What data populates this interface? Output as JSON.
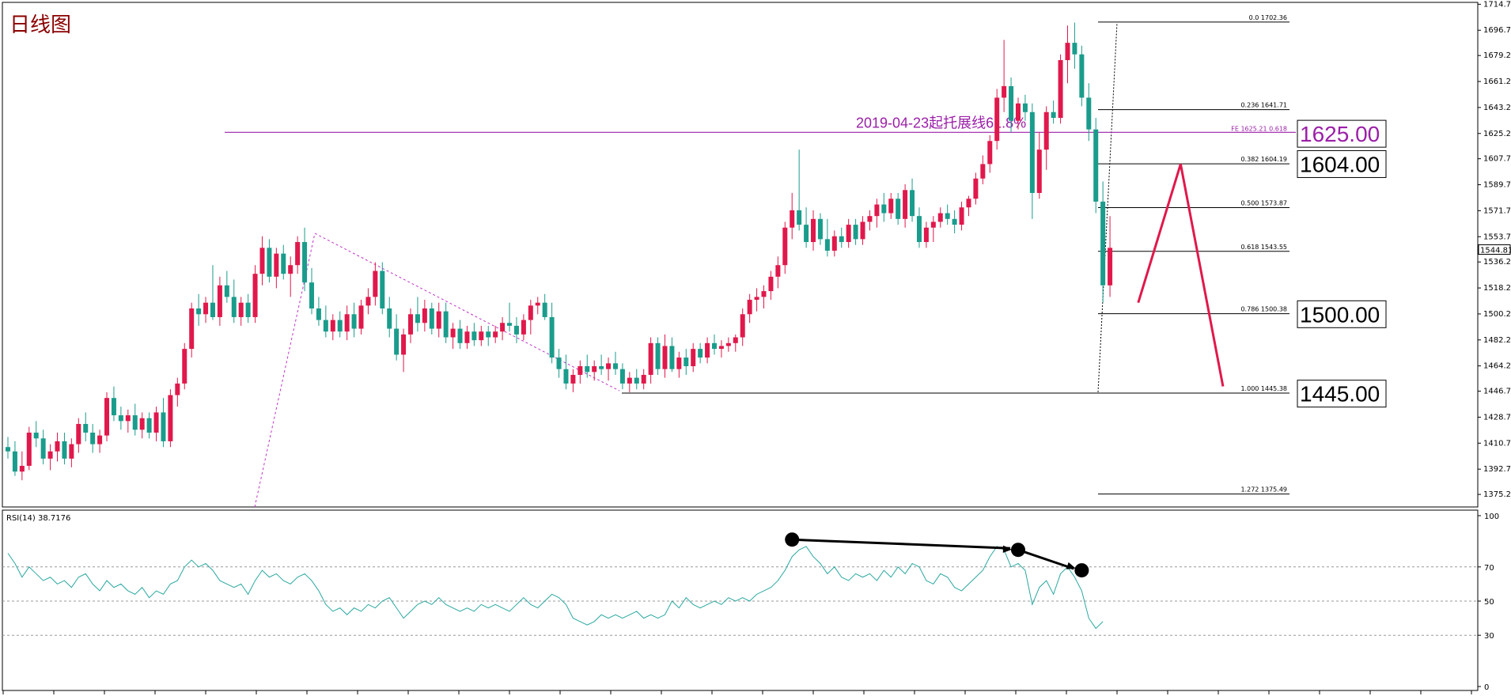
{
  "chart_data": {
    "type": "candlestick",
    "title": "日线图",
    "price_axis": {
      "ylim": [
        1366.5,
        1716.0
      ],
      "ticks": [
        "1714.70",
        "1696.70",
        "1679.20",
        "1661.20",
        "1643.20",
        "1625.20",
        "1607.70",
        "1589.70",
        "1571.70",
        "1553.70",
        "1536.20",
        "1518.20",
        "1500.20",
        "1482.20",
        "1464.20",
        "1446.70",
        "1428.70",
        "1410.70",
        "1392.70",
        "1375.20"
      ],
      "current_price_label": "1544.81",
      "current_price": 1544.81
    },
    "colors": {
      "bull": "#e0184b",
      "bear": "#1a9c8c",
      "fe_line": "#9b1fa8",
      "projection": "#e0184b",
      "rsi_line": "#2aa8a0",
      "fib_line": "#000000"
    },
    "candles": [
      {
        "o": 1408,
        "h": 1415,
        "l": 1400,
        "c": 1405
      },
      {
        "o": 1405,
        "h": 1412,
        "l": 1388,
        "c": 1391
      },
      {
        "o": 1391,
        "h": 1405,
        "l": 1385,
        "c": 1395
      },
      {
        "o": 1395,
        "h": 1422,
        "l": 1392,
        "c": 1418
      },
      {
        "o": 1418,
        "h": 1426,
        "l": 1408,
        "c": 1414
      },
      {
        "o": 1414,
        "h": 1420,
        "l": 1396,
        "c": 1400
      },
      {
        "o": 1400,
        "h": 1410,
        "l": 1392,
        "c": 1405
      },
      {
        "o": 1405,
        "h": 1418,
        "l": 1398,
        "c": 1412
      },
      {
        "o": 1412,
        "h": 1418,
        "l": 1396,
        "c": 1400
      },
      {
        "o": 1400,
        "h": 1414,
        "l": 1394,
        "c": 1410
      },
      {
        "o": 1410,
        "h": 1428,
        "l": 1404,
        "c": 1424
      },
      {
        "o": 1424,
        "h": 1432,
        "l": 1412,
        "c": 1418
      },
      {
        "o": 1418,
        "h": 1424,
        "l": 1404,
        "c": 1410
      },
      {
        "o": 1410,
        "h": 1420,
        "l": 1404,
        "c": 1416
      },
      {
        "o": 1416,
        "h": 1446,
        "l": 1412,
        "c": 1442
      },
      {
        "o": 1442,
        "h": 1450,
        "l": 1426,
        "c": 1430
      },
      {
        "o": 1430,
        "h": 1436,
        "l": 1420,
        "c": 1426
      },
      {
        "o": 1426,
        "h": 1434,
        "l": 1418,
        "c": 1430
      },
      {
        "o": 1430,
        "h": 1438,
        "l": 1416,
        "c": 1420
      },
      {
        "o": 1420,
        "h": 1432,
        "l": 1414,
        "c": 1428
      },
      {
        "o": 1428,
        "h": 1432,
        "l": 1414,
        "c": 1418
      },
      {
        "o": 1418,
        "h": 1436,
        "l": 1412,
        "c": 1432
      },
      {
        "o": 1432,
        "h": 1442,
        "l": 1408,
        "c": 1412
      },
      {
        "o": 1412,
        "h": 1448,
        "l": 1408,
        "c": 1444
      },
      {
        "o": 1444,
        "h": 1456,
        "l": 1436,
        "c": 1452
      },
      {
        "o": 1452,
        "h": 1480,
        "l": 1448,
        "c": 1476
      },
      {
        "o": 1476,
        "h": 1508,
        "l": 1470,
        "c": 1504
      },
      {
        "o": 1504,
        "h": 1514,
        "l": 1492,
        "c": 1500
      },
      {
        "o": 1500,
        "h": 1512,
        "l": 1494,
        "c": 1508
      },
      {
        "o": 1508,
        "h": 1534,
        "l": 1496,
        "c": 1498
      },
      {
        "o": 1498,
        "h": 1526,
        "l": 1492,
        "c": 1520
      },
      {
        "o": 1520,
        "h": 1530,
        "l": 1508,
        "c": 1512
      },
      {
        "o": 1512,
        "h": 1524,
        "l": 1494,
        "c": 1498
      },
      {
        "o": 1498,
        "h": 1512,
        "l": 1492,
        "c": 1508
      },
      {
        "o": 1508,
        "h": 1514,
        "l": 1494,
        "c": 1498
      },
      {
        "o": 1498,
        "h": 1534,
        "l": 1494,
        "c": 1528
      },
      {
        "o": 1528,
        "h": 1554,
        "l": 1520,
        "c": 1546
      },
      {
        "o": 1546,
        "h": 1552,
        "l": 1522,
        "c": 1526
      },
      {
        "o": 1526,
        "h": 1546,
        "l": 1518,
        "c": 1542
      },
      {
        "o": 1542,
        "h": 1548,
        "l": 1524,
        "c": 1528
      },
      {
        "o": 1528,
        "h": 1540,
        "l": 1512,
        "c": 1534
      },
      {
        "o": 1534,
        "h": 1554,
        "l": 1528,
        "c": 1550
      },
      {
        "o": 1550,
        "h": 1560,
        "l": 1516,
        "c": 1522
      },
      {
        "o": 1522,
        "h": 1532,
        "l": 1500,
        "c": 1504
      },
      {
        "o": 1504,
        "h": 1512,
        "l": 1492,
        "c": 1496
      },
      {
        "o": 1496,
        "h": 1506,
        "l": 1484,
        "c": 1488
      },
      {
        "o": 1488,
        "h": 1500,
        "l": 1482,
        "c": 1496
      },
      {
        "o": 1496,
        "h": 1502,
        "l": 1484,
        "c": 1488
      },
      {
        "o": 1488,
        "h": 1506,
        "l": 1482,
        "c": 1500
      },
      {
        "o": 1500,
        "h": 1508,
        "l": 1484,
        "c": 1490
      },
      {
        "o": 1490,
        "h": 1510,
        "l": 1486,
        "c": 1506
      },
      {
        "o": 1506,
        "h": 1518,
        "l": 1500,
        "c": 1512
      },
      {
        "o": 1512,
        "h": 1536,
        "l": 1506,
        "c": 1530
      },
      {
        "o": 1530,
        "h": 1536,
        "l": 1500,
        "c": 1504
      },
      {
        "o": 1504,
        "h": 1512,
        "l": 1484,
        "c": 1490
      },
      {
        "o": 1490,
        "h": 1500,
        "l": 1468,
        "c": 1472
      },
      {
        "o": 1472,
        "h": 1490,
        "l": 1460,
        "c": 1486
      },
      {
        "o": 1486,
        "h": 1504,
        "l": 1480,
        "c": 1500
      },
      {
        "o": 1500,
        "h": 1512,
        "l": 1488,
        "c": 1494
      },
      {
        "o": 1494,
        "h": 1510,
        "l": 1488,
        "c": 1504
      },
      {
        "o": 1504,
        "h": 1508,
        "l": 1486,
        "c": 1490
      },
      {
        "o": 1490,
        "h": 1508,
        "l": 1484,
        "c": 1502
      },
      {
        "o": 1502,
        "h": 1508,
        "l": 1480,
        "c": 1484
      },
      {
        "o": 1484,
        "h": 1494,
        "l": 1476,
        "c": 1490
      },
      {
        "o": 1490,
        "h": 1496,
        "l": 1476,
        "c": 1480
      },
      {
        "o": 1480,
        "h": 1492,
        "l": 1476,
        "c": 1488
      },
      {
        "o": 1488,
        "h": 1494,
        "l": 1478,
        "c": 1482
      },
      {
        "o": 1482,
        "h": 1492,
        "l": 1478,
        "c": 1488
      },
      {
        "o": 1488,
        "h": 1492,
        "l": 1478,
        "c": 1484
      },
      {
        "o": 1484,
        "h": 1492,
        "l": 1480,
        "c": 1488
      },
      {
        "o": 1488,
        "h": 1498,
        "l": 1482,
        "c": 1494
      },
      {
        "o": 1494,
        "h": 1508,
        "l": 1488,
        "c": 1492
      },
      {
        "o": 1492,
        "h": 1498,
        "l": 1480,
        "c": 1486
      },
      {
        "o": 1486,
        "h": 1500,
        "l": 1482,
        "c": 1496
      },
      {
        "o": 1496,
        "h": 1510,
        "l": 1486,
        "c": 1506
      },
      {
        "o": 1506,
        "h": 1512,
        "l": 1500,
        "c": 1508
      },
      {
        "o": 1508,
        "h": 1514,
        "l": 1496,
        "c": 1498
      },
      {
        "o": 1498,
        "h": 1508,
        "l": 1466,
        "c": 1470
      },
      {
        "o": 1470,
        "h": 1476,
        "l": 1456,
        "c": 1462
      },
      {
        "o": 1462,
        "h": 1472,
        "l": 1448,
        "c": 1452
      },
      {
        "o": 1452,
        "h": 1462,
        "l": 1446,
        "c": 1458
      },
      {
        "o": 1458,
        "h": 1468,
        "l": 1452,
        "c": 1464
      },
      {
        "o": 1464,
        "h": 1472,
        "l": 1456,
        "c": 1460
      },
      {
        "o": 1460,
        "h": 1468,
        "l": 1454,
        "c": 1464
      },
      {
        "o": 1464,
        "h": 1472,
        "l": 1458,
        "c": 1462
      },
      {
        "o": 1462,
        "h": 1470,
        "l": 1454,
        "c": 1466
      },
      {
        "o": 1466,
        "h": 1474,
        "l": 1458,
        "c": 1462
      },
      {
        "o": 1462,
        "h": 1466,
        "l": 1448,
        "c": 1452
      },
      {
        "o": 1452,
        "h": 1460,
        "l": 1446,
        "c": 1456
      },
      {
        "o": 1456,
        "h": 1462,
        "l": 1448,
        "c": 1452
      },
      {
        "o": 1452,
        "h": 1462,
        "l": 1448,
        "c": 1458
      },
      {
        "o": 1458,
        "h": 1484,
        "l": 1452,
        "c": 1480
      },
      {
        "o": 1480,
        "h": 1484,
        "l": 1458,
        "c": 1462
      },
      {
        "o": 1462,
        "h": 1486,
        "l": 1456,
        "c": 1478
      },
      {
        "o": 1478,
        "h": 1484,
        "l": 1460,
        "c": 1462
      },
      {
        "o": 1462,
        "h": 1474,
        "l": 1456,
        "c": 1470
      },
      {
        "o": 1470,
        "h": 1476,
        "l": 1458,
        "c": 1464
      },
      {
        "o": 1464,
        "h": 1480,
        "l": 1460,
        "c": 1476
      },
      {
        "o": 1476,
        "h": 1480,
        "l": 1466,
        "c": 1470
      },
      {
        "o": 1470,
        "h": 1484,
        "l": 1466,
        "c": 1480
      },
      {
        "o": 1480,
        "h": 1486,
        "l": 1472,
        "c": 1476
      },
      {
        "o": 1476,
        "h": 1482,
        "l": 1470,
        "c": 1478
      },
      {
        "o": 1478,
        "h": 1484,
        "l": 1474,
        "c": 1480
      },
      {
        "o": 1480,
        "h": 1486,
        "l": 1474,
        "c": 1484
      },
      {
        "o": 1484,
        "h": 1504,
        "l": 1478,
        "c": 1500
      },
      {
        "o": 1500,
        "h": 1514,
        "l": 1494,
        "c": 1510
      },
      {
        "o": 1510,
        "h": 1518,
        "l": 1502,
        "c": 1512
      },
      {
        "o": 1512,
        "h": 1520,
        "l": 1504,
        "c": 1516
      },
      {
        "o": 1516,
        "h": 1530,
        "l": 1510,
        "c": 1526
      },
      {
        "o": 1526,
        "h": 1540,
        "l": 1518,
        "c": 1534
      },
      {
        "o": 1534,
        "h": 1564,
        "l": 1528,
        "c": 1560
      },
      {
        "o": 1560,
        "h": 1584,
        "l": 1552,
        "c": 1572
      },
      {
        "o": 1572,
        "h": 1614,
        "l": 1558,
        "c": 1562
      },
      {
        "o": 1562,
        "h": 1574,
        "l": 1546,
        "c": 1550
      },
      {
        "o": 1550,
        "h": 1572,
        "l": 1544,
        "c": 1566
      },
      {
        "o": 1566,
        "h": 1570,
        "l": 1548,
        "c": 1552
      },
      {
        "o": 1552,
        "h": 1566,
        "l": 1540,
        "c": 1544
      },
      {
        "o": 1544,
        "h": 1558,
        "l": 1540,
        "c": 1554
      },
      {
        "o": 1554,
        "h": 1560,
        "l": 1546,
        "c": 1550
      },
      {
        "o": 1550,
        "h": 1566,
        "l": 1546,
        "c": 1562
      },
      {
        "o": 1562,
        "h": 1566,
        "l": 1548,
        "c": 1552
      },
      {
        "o": 1552,
        "h": 1568,
        "l": 1548,
        "c": 1564
      },
      {
        "o": 1564,
        "h": 1572,
        "l": 1558,
        "c": 1568
      },
      {
        "o": 1568,
        "h": 1580,
        "l": 1560,
        "c": 1576
      },
      {
        "o": 1576,
        "h": 1584,
        "l": 1564,
        "c": 1570
      },
      {
        "o": 1570,
        "h": 1584,
        "l": 1566,
        "c": 1580
      },
      {
        "o": 1580,
        "h": 1584,
        "l": 1562,
        "c": 1566
      },
      {
        "o": 1566,
        "h": 1590,
        "l": 1560,
        "c": 1586
      },
      {
        "o": 1586,
        "h": 1594,
        "l": 1564,
        "c": 1568
      },
      {
        "o": 1568,
        "h": 1574,
        "l": 1546,
        "c": 1550
      },
      {
        "o": 1550,
        "h": 1564,
        "l": 1546,
        "c": 1560
      },
      {
        "o": 1560,
        "h": 1568,
        "l": 1550,
        "c": 1564
      },
      {
        "o": 1564,
        "h": 1574,
        "l": 1560,
        "c": 1570
      },
      {
        "o": 1570,
        "h": 1576,
        "l": 1562,
        "c": 1566
      },
      {
        "o": 1566,
        "h": 1572,
        "l": 1556,
        "c": 1562
      },
      {
        "o": 1562,
        "h": 1578,
        "l": 1558,
        "c": 1574
      },
      {
        "o": 1574,
        "h": 1582,
        "l": 1568,
        "c": 1580
      },
      {
        "o": 1580,
        "h": 1598,
        "l": 1576,
        "c": 1594
      },
      {
        "o": 1594,
        "h": 1610,
        "l": 1590,
        "c": 1604
      },
      {
        "o": 1604,
        "h": 1624,
        "l": 1598,
        "c": 1620
      },
      {
        "o": 1620,
        "h": 1656,
        "l": 1614,
        "c": 1650
      },
      {
        "o": 1650,
        "h": 1690,
        "l": 1640,
        "c": 1658
      },
      {
        "o": 1658,
        "h": 1664,
        "l": 1626,
        "c": 1634
      },
      {
        "o": 1634,
        "h": 1650,
        "l": 1628,
        "c": 1646
      },
      {
        "o": 1646,
        "h": 1652,
        "l": 1634,
        "c": 1640
      },
      {
        "o": 1640,
        "h": 1646,
        "l": 1566,
        "c": 1584
      },
      {
        "o": 1584,
        "h": 1626,
        "l": 1580,
        "c": 1614
      },
      {
        "o": 1614,
        "h": 1644,
        "l": 1600,
        "c": 1640
      },
      {
        "o": 1640,
        "h": 1648,
        "l": 1632,
        "c": 1636
      },
      {
        "o": 1636,
        "h": 1680,
        "l": 1632,
        "c": 1676
      },
      {
        "o": 1676,
        "h": 1700,
        "l": 1660,
        "c": 1688
      },
      {
        "o": 1688,
        "h": 1702,
        "l": 1670,
        "c": 1680
      },
      {
        "o": 1680,
        "h": 1686,
        "l": 1644,
        "c": 1650
      },
      {
        "o": 1650,
        "h": 1660,
        "l": 1620,
        "c": 1628
      },
      {
        "o": 1628,
        "h": 1636,
        "l": 1570,
        "c": 1578
      },
      {
        "o": 1578,
        "h": 1592,
        "l": 1508,
        "c": 1520
      },
      {
        "o": 1520,
        "h": 1568,
        "l": 1512,
        "c": 1546
      }
    ],
    "fib_levels": [
      {
        "ratio": "0.0",
        "value": "1702.36"
      },
      {
        "ratio": "0.236",
        "value": "1641.71"
      },
      {
        "ratio": "0.382",
        "value": "1604.19"
      },
      {
        "ratio": "0.500",
        "value": "1573.87"
      },
      {
        "ratio": "0.618",
        "value": "1543.55"
      },
      {
        "ratio": "0.786",
        "value": "1500.38"
      },
      {
        "ratio": "1.000",
        "value": "1445.38"
      },
      {
        "ratio": "1.272",
        "value": "1375.49"
      }
    ],
    "fe_level": {
      "label": "FE 1625.21 0.618",
      "value": 1625.21
    },
    "support_line": {
      "label": "2019-04-23起托展线61.8%",
      "value": 1626
    },
    "price_labels": [
      {
        "text": "1625.00",
        "value": 1625,
        "color": "#9b1fa8"
      },
      {
        "text": "1604.00",
        "value": 1604,
        "color": "#000000"
      },
      {
        "text": "1500.00",
        "value": 1500,
        "color": "#000000"
      },
      {
        "text": "1445.00",
        "value": 1445,
        "color": "#000000"
      }
    ],
    "projection_path": [
      {
        "candle": 160,
        "price": 1508
      },
      {
        "candle": 166,
        "price": 1604
      },
      {
        "candle": 172,
        "price": 1450
      }
    ],
    "rsi": {
      "label": "RSI(14) 38.7176",
      "ylim": [
        0,
        100
      ],
      "ticks": [
        "100",
        "70",
        "50",
        "30",
        "0"
      ],
      "levels": [
        70,
        50,
        30
      ],
      "values": [
        78,
        72,
        64,
        70,
        66,
        62,
        64,
        60,
        62,
        58,
        64,
        66,
        60,
        56,
        62,
        58,
        60,
        56,
        54,
        58,
        52,
        56,
        54,
        60,
        62,
        70,
        74,
        70,
        72,
        68,
        62,
        60,
        58,
        60,
        54,
        62,
        68,
        64,
        66,
        62,
        60,
        64,
        66,
        62,
        56,
        48,
        44,
        46,
        42,
        46,
        44,
        48,
        46,
        50,
        52,
        46,
        40,
        44,
        48,
        50,
        48,
        52,
        48,
        46,
        44,
        46,
        44,
        48,
        46,
        48,
        46,
        44,
        48,
        52,
        48,
        46,
        50,
        54,
        52,
        48,
        40,
        38,
        36,
        38,
        42,
        40,
        42,
        40,
        42,
        44,
        40,
        42,
        40,
        42,
        50,
        46,
        52,
        48,
        46,
        48,
        50,
        48,
        52,
        50,
        52,
        50,
        54,
        56,
        58,
        62,
        68,
        76,
        80,
        82,
        76,
        72,
        66,
        70,
        64,
        62,
        66,
        64,
        66,
        62,
        68,
        64,
        70,
        66,
        72,
        70,
        62,
        60,
        66,
        64,
        58,
        56,
        60,
        64,
        68,
        76,
        82,
        80,
        70,
        72,
        68,
        48,
        58,
        62,
        54,
        66,
        70,
        64,
        56,
        40,
        34,
        38
      ]
    },
    "rsi_markers": [
      {
        "index": 111,
        "value": 86
      },
      {
        "index": 143,
        "value": 80
      },
      {
        "index": 152,
        "value": 68
      }
    ]
  },
  "ui": {
    "title": "日线图",
    "rsi_label": "RSI(14) 38.7176",
    "current_price": "1544.81"
  }
}
